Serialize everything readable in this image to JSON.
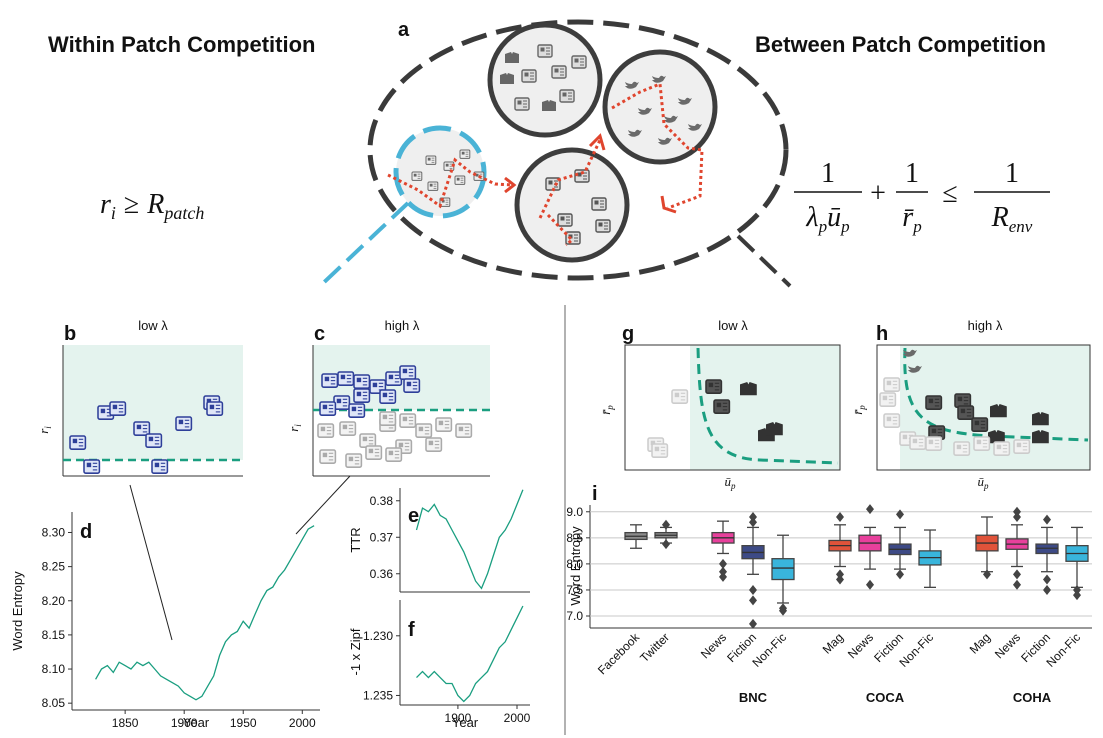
{
  "diagram": {
    "within_title": "Within Patch Competition",
    "between_title": "Between Patch Competition",
    "panel_a": "a",
    "patch_condition": {
      "lhs": "r",
      "lhs_sub": "i",
      "op": "≥",
      "rhs": "R",
      "rhs_sub": "patch"
    },
    "env_condition": {
      "fractions": [
        {
          "num": "1",
          "den": [
            {
              "base": "λ",
              "sub": "p"
            },
            {
              "base": "ū",
              "sub": "p"
            }
          ]
        },
        {
          "num": "1",
          "den": [
            {
              "base": "r̄",
              "sub": "p"
            }
          ]
        },
        {
          "num": "1",
          "den": [
            {
              "base": "R",
              "sub": "env"
            }
          ]
        }
      ],
      "ops": [
        "+",
        "≤"
      ]
    },
    "panels": [
      {
        "letter": "b",
        "title": "low λ",
        "ylabel": {
          "base": "r",
          "sub": "i"
        }
      },
      {
        "letter": "c",
        "title": "high λ",
        "ylabel": {
          "base": "r",
          "sub": "i"
        }
      },
      {
        "letter": "g",
        "title": "low λ",
        "xlabel": {
          "base": "ū",
          "sub": "p"
        },
        "ylabel": {
          "base": "r̄",
          "sub": "p"
        }
      },
      {
        "letter": "h",
        "title": "high λ",
        "xlabel": {
          "base": "ū",
          "sub": "p"
        },
        "ylabel": {
          "base": "r̄",
          "sub": "p"
        }
      }
    ]
  },
  "chart_data": [
    {
      "type": "line",
      "panel": "d",
      "xlabel": "Year",
      "ylabel": "Word Entropy",
      "color": "#1a9e80",
      "x": [
        1825,
        1830,
        1835,
        1840,
        1845,
        1850,
        1855,
        1860,
        1865,
        1870,
        1875,
        1880,
        1885,
        1890,
        1895,
        1900,
        1905,
        1910,
        1915,
        1920,
        1925,
        1930,
        1935,
        1940,
        1945,
        1950,
        1955,
        1960,
        1965,
        1970,
        1975,
        1980,
        1985,
        1990,
        1995,
        2000,
        2005,
        2010
      ],
      "values": [
        8.085,
        8.1,
        8.105,
        8.095,
        8.11,
        8.105,
        8.1,
        8.11,
        8.105,
        8.11,
        8.1,
        8.09,
        8.085,
        8.08,
        8.075,
        8.065,
        8.06,
        8.055,
        8.06,
        8.075,
        8.09,
        8.12,
        8.14,
        8.15,
        8.155,
        8.17,
        8.16,
        8.18,
        8.2,
        8.215,
        8.22,
        8.235,
        8.245,
        8.26,
        8.275,
        8.29,
        8.305,
        8.31
      ],
      "xlim": [
        1805,
        2015
      ],
      "xticks": [
        1850,
        1900,
        1950,
        2000
      ],
      "ylim": [
        8.04,
        8.33
      ],
      "yticks": [
        8.05,
        {
          "value": 8.1,
          "label": "8.10"
        },
        8.15,
        {
          "value": 8.2,
          "label": "8.20"
        },
        8.25,
        {
          "value": 8.3,
          "label": "8.30"
        }
      ]
    },
    {
      "type": "line",
      "panel": "e",
      "ylabel": "TTR",
      "color": "#1a9e80",
      "x": [
        1830,
        1840,
        1850,
        1860,
        1870,
        1880,
        1890,
        1900,
        1910,
        1920,
        1930,
        1940,
        1950,
        1960,
        1970,
        1980,
        1990,
        2000,
        2010
      ],
      "values": [
        0.372,
        0.378,
        0.377,
        0.379,
        0.376,
        0.375,
        0.372,
        0.369,
        0.366,
        0.362,
        0.358,
        0.356,
        0.36,
        0.365,
        0.37,
        0.372,
        0.375,
        0.379,
        0.383
      ],
      "xlim": [
        1802,
        2022
      ],
      "ylim": [
        0.355,
        0.3835
      ],
      "yticks": [
        0.36,
        0.37,
        0.38
      ]
    },
    {
      "type": "line",
      "panel": "f",
      "xlabel": "Year",
      "ylabel": "-1 x Zipf",
      "color": "#1a9e80",
      "x": [
        1830,
        1840,
        1850,
        1860,
        1870,
        1880,
        1890,
        1900,
        1910,
        1920,
        1930,
        1940,
        1950,
        1960,
        1970,
        1980,
        1990,
        2000,
        2010
      ],
      "values": [
        1.2335,
        1.233,
        1.2335,
        1.233,
        1.2335,
        1.234,
        1.234,
        1.235,
        1.2355,
        1.235,
        1.234,
        1.2335,
        1.233,
        1.232,
        1.231,
        1.2305,
        1.2295,
        1.2285,
        1.2275
      ],
      "xlim": [
        1802,
        2022
      ],
      "xticks": [
        1900,
        2000
      ],
      "ylim": [
        1.2358,
        1.227
      ],
      "yticks": [
        {
          "value": 1.23,
          "label": "1.230"
        },
        1.235
      ]
    },
    {
      "type": "box",
      "panel": "i",
      "ylabel": "Word Entropy",
      "grid": true,
      "ylim": [
        6.77,
        9.13
      ],
      "yticks": [
        {
          "value": 7,
          "label": "7.0"
        },
        7.5,
        {
          "value": 8,
          "label": "8.0"
        },
        8.5,
        {
          "value": 9,
          "label": "9.0"
        }
      ],
      "groups": [
        {
          "label": null,
          "boxes": [
            {
              "name": "Facebook",
              "color": "#8c8c8c",
              "whisker_low": 8.3,
              "q1": 8.47,
              "median": 8.53,
              "q3": 8.6,
              "whisker_high": 8.75
            },
            {
              "name": "Twitter",
              "color": "#8c8c8c",
              "whisker_low": 8.4,
              "q1": 8.5,
              "median": 8.55,
              "q3": 8.6,
              "whisker_high": 8.7,
              "outliers": [
                8.75,
                8.38
              ]
            }
          ]
        },
        {
          "label": "BNC",
          "boxes": [
            {
              "name": "News",
              "color": "#e8409c",
              "whisker_low": 8.2,
              "q1": 8.4,
              "median": 8.5,
              "q3": 8.6,
              "whisker_high": 8.82,
              "outliers": [
                8.0,
                7.85,
                7.75
              ]
            },
            {
              "name": "Fiction",
              "color": "#3d4a86",
              "whisker_low": 7.8,
              "q1": 8.1,
              "median": 8.22,
              "q3": 8.35,
              "whisker_high": 8.7,
              "outliers": [
                8.9,
                8.8,
                7.5,
                7.3,
                6.85
              ]
            },
            {
              "name": "Non-Fic",
              "color": "#39b5dc",
              "whisker_low": 7.25,
              "q1": 7.7,
              "median": 7.92,
              "q3": 8.1,
              "whisker_high": 8.55,
              "outliers": [
                7.15,
                7.1
              ]
            }
          ]
        },
        {
          "label": "COCA",
          "boxes": [
            {
              "name": "Mag",
              "color": "#e0533a",
              "whisker_low": 7.95,
              "q1": 8.25,
              "median": 8.35,
              "q3": 8.45,
              "whisker_high": 8.75,
              "outliers": [
                8.9,
                7.8,
                7.7
              ]
            },
            {
              "name": "News",
              "color": "#e8409c",
              "whisker_low": 7.9,
              "q1": 8.25,
              "median": 8.4,
              "q3": 8.55,
              "whisker_high": 8.7,
              "outliers": [
                9.05,
                7.6
              ]
            },
            {
              "name": "Fiction",
              "color": "#3d4a86",
              "whisker_low": 7.9,
              "q1": 8.18,
              "median": 8.28,
              "q3": 8.38,
              "whisker_high": 8.7,
              "outliers": [
                8.95,
                7.8
              ]
            },
            {
              "name": "Non-Fic",
              "color": "#39b5dc",
              "whisker_low": 7.55,
              "q1": 7.98,
              "median": 8.12,
              "q3": 8.25,
              "whisker_high": 8.65
            }
          ]
        },
        {
          "label": "COHA",
          "boxes": [
            {
              "name": "Mag",
              "color": "#e0533a",
              "whisker_low": 7.85,
              "q1": 8.25,
              "median": 8.4,
              "q3": 8.55,
              "whisker_high": 8.9,
              "outliers": [
                7.8
              ]
            },
            {
              "name": "News",
              "color": "#e8409c",
              "whisker_low": 7.95,
              "q1": 8.28,
              "median": 8.38,
              "q3": 8.48,
              "whisker_high": 8.75,
              "outliers": [
                9.0,
                8.9,
                7.8,
                7.6
              ]
            },
            {
              "name": "Fiction",
              "color": "#3d4a86",
              "whisker_low": 7.85,
              "q1": 8.2,
              "median": 8.3,
              "q3": 8.38,
              "whisker_high": 8.7,
              "outliers": [
                8.85,
                7.7,
                7.5
              ]
            },
            {
              "name": "Non-Fic",
              "color": "#39b5dc",
              "whisker_low": 7.55,
              "q1": 8.05,
              "median": 8.2,
              "q3": 8.35,
              "whisker_high": 8.7,
              "outliers": [
                7.5,
                7.4
              ]
            }
          ]
        }
      ]
    }
  ]
}
